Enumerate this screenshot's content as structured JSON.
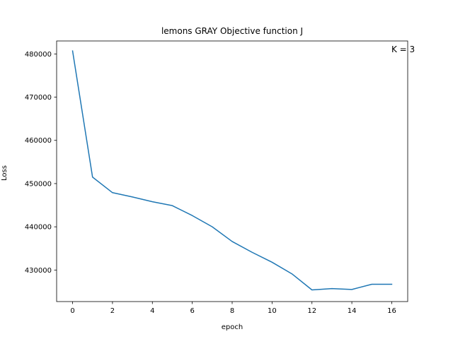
{
  "chart_data": {
    "type": "line",
    "title": "lemons GRAY Objective function J",
    "xlabel": "epoch",
    "ylabel": "Loss",
    "annotation": "K = 3",
    "xlim": [
      -0.8,
      16.8
    ],
    "ylim": [
      422700,
      483000
    ],
    "xticks": [
      0,
      2,
      4,
      6,
      8,
      10,
      12,
      14,
      16
    ],
    "yticks": [
      430000,
      440000,
      450000,
      460000,
      470000,
      480000
    ],
    "grid": false,
    "line_color": "#1f77b4",
    "series": [
      {
        "x": [
          0,
          1,
          2,
          3,
          4,
          5,
          6,
          7,
          8,
          9,
          10,
          11,
          12,
          13,
          14,
          15,
          16
        ],
        "values": [
          480700,
          451500,
          447900,
          446900,
          445800,
          444900,
          442600,
          440000,
          436600,
          434100,
          431800,
          429100,
          425400,
          425700,
          425500,
          426700,
          426700
        ]
      }
    ]
  }
}
